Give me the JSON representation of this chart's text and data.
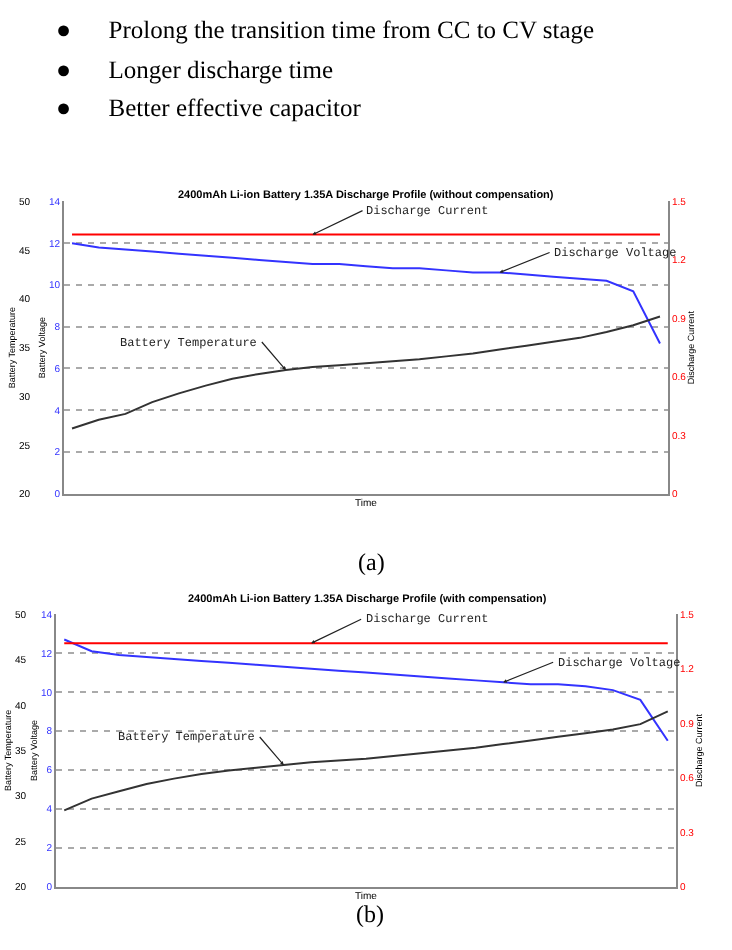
{
  "chart_data": [
    {
      "type": "other",
      "annotations": [
        "●      Prolong the transition time from CC to CV stage",
        "●      Longer discharge time",
        "●      Better effective capacitor"
      ]
    },
    {
      "type": "line",
      "title": "2400mAh Li-ion Battery 1.35A Discharge Profile (without compensation)",
      "xlabel": "Time",
      "ylabel": "Battery Temperature",
      "y2label": "Battery Voltage",
      "y3label": "Discharge Current",
      "categories": [
        null,
        null,
        null,
        null,
        null,
        null,
        null,
        null,
        null,
        null,
        null,
        null,
        null,
        null,
        null,
        null,
        null,
        null,
        null,
        null,
        null,
        null,
        null
      ],
      "series": [
        {
          "name": "Discharge Current",
          "color": "#ff0000",
          "axis": "y3",
          "values": [
            1.33,
            1.33,
            1.33,
            1.33,
            1.33,
            1.33,
            1.33,
            1.33,
            1.33,
            1.33,
            1.33,
            1.33,
            1.33,
            1.33,
            1.33,
            1.33,
            1.33,
            1.33,
            1.33,
            1.33,
            1.33,
            1.33,
            1.33
          ]
        },
        {
          "name": "Discharge Voltage",
          "color": "#3333ff",
          "axis": "y2",
          "values": [
            12.0,
            11.8,
            11.7,
            11.6,
            11.5,
            11.4,
            11.3,
            11.2,
            11.1,
            11.0,
            11.0,
            10.9,
            10.8,
            10.8,
            10.7,
            10.6,
            10.6,
            10.5,
            10.4,
            10.3,
            10.2,
            9.7,
            7.2
          ]
        },
        {
          "name": "Battery Temperature",
          "color": "#333333",
          "values": [
            26.7,
            27.6,
            28.2,
            29.4,
            30.3,
            31.1,
            31.8,
            32.3,
            32.7,
            33.0,
            33.2,
            33.4,
            33.6,
            33.8,
            34.1,
            34.4,
            34.8,
            35.2,
            35.6,
            36.0,
            36.6,
            37.3,
            38.2
          ]
        }
      ],
      "ylim": [
        20,
        50
      ],
      "yticks": [
        20,
        25,
        30,
        35,
        40,
        45,
        50
      ],
      "y2lim": [
        0,
        14
      ],
      "y2ticks": [
        0,
        2,
        4,
        6,
        8,
        10,
        12,
        14
      ],
      "y3lim": [
        0,
        1.5
      ],
      "y3ticks": [
        0,
        0.3,
        0.6,
        0.9,
        1.2,
        1.5
      ],
      "grid": "y",
      "tick_labels": "y",
      "annotations": [
        "(a)"
      ]
    },
    {
      "type": "line",
      "title": "2400mAh Li-ion Battery 1.35A Discharge Profile (with compensation)",
      "xlabel": "Time",
      "ylabel": "Battery Temperature",
      "y2label": "Battery Voltage",
      "y3label": "Discharge Current",
      "categories": [
        null,
        null,
        null,
        null,
        null,
        null,
        null,
        null,
        null,
        null,
        null,
        null,
        null,
        null,
        null,
        null,
        null,
        null,
        null,
        null,
        null,
        null,
        null
      ],
      "series": [
        {
          "name": "Discharge Current",
          "color": "#ff0000",
          "axis": "y3",
          "values": [
            1.34,
            1.34,
            1.34,
            1.34,
            1.34,
            1.34,
            1.34,
            1.34,
            1.34,
            1.34,
            1.34,
            1.34,
            1.34,
            1.34,
            1.34,
            1.34,
            1.34,
            1.34,
            1.34,
            1.34,
            1.34,
            1.34,
            1.34
          ]
        },
        {
          "name": "Discharge Voltage",
          "color": "#3333ff",
          "axis": "y2",
          "values": [
            12.7,
            12.1,
            11.9,
            11.8,
            11.7,
            11.6,
            11.5,
            11.4,
            11.3,
            11.2,
            11.1,
            11.0,
            10.9,
            10.8,
            10.7,
            10.6,
            10.5,
            10.4,
            10.4,
            10.3,
            10.1,
            9.6,
            7.5
          ]
        },
        {
          "name": "Battery Temperature",
          "color": "#333333",
          "values": [
            28.4,
            29.7,
            30.5,
            31.3,
            31.9,
            32.4,
            32.8,
            33.1,
            33.4,
            33.7,
            33.9,
            34.1,
            34.4,
            34.7,
            35.0,
            35.3,
            35.7,
            36.1,
            36.5,
            36.9,
            37.3,
            37.9,
            39.3
          ]
        }
      ],
      "ylim": [
        20,
        50
      ],
      "yticks": [
        20,
        25,
        30,
        35,
        40,
        45,
        50
      ],
      "y2lim": [
        0,
        14
      ],
      "y2ticks": [
        0,
        2,
        4,
        6,
        8,
        10,
        12,
        14
      ],
      "y3lim": [
        0,
        1.5
      ],
      "y3ticks": [
        0,
        0.3,
        0.6,
        0.9,
        1.2,
        1.5
      ],
      "grid": "y",
      "tick_labels": "y",
      "annotations": [
        "(b)"
      ]
    }
  ]
}
